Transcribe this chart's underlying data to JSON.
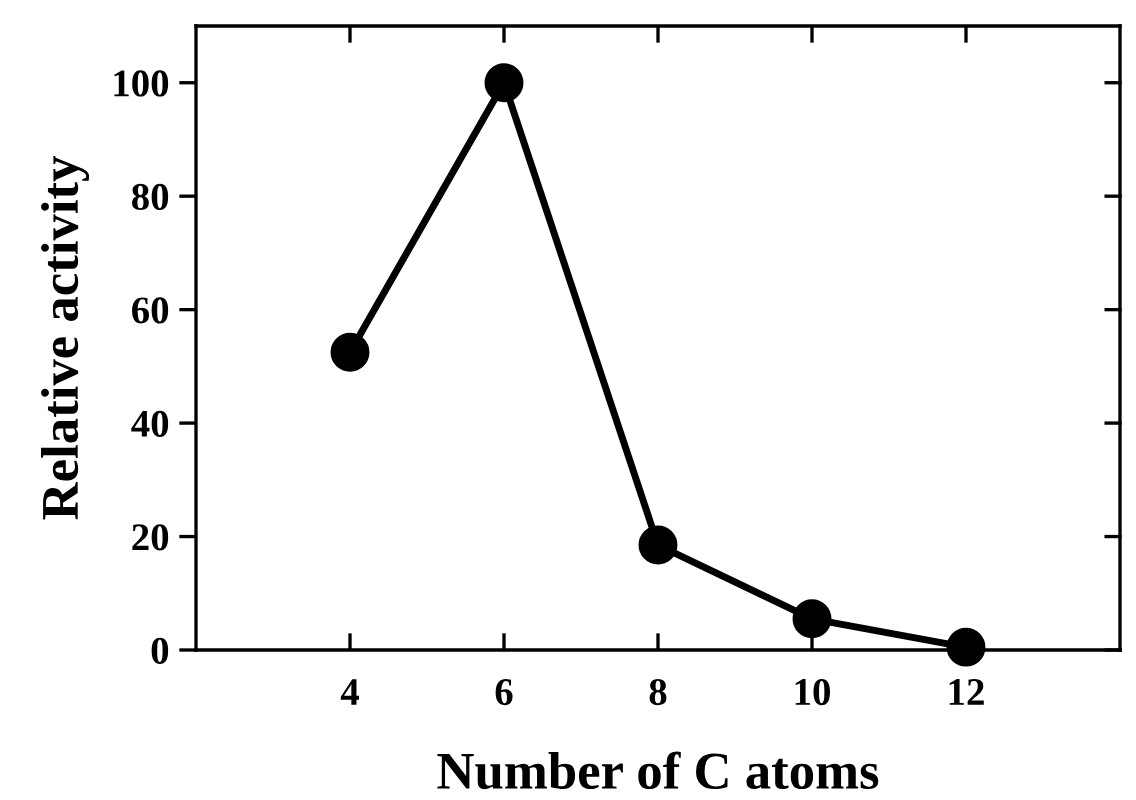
{
  "chart_data": {
    "type": "line",
    "xlabel": "Number of C atoms",
    "ylabel": "Relative activity",
    "x": [
      4,
      6,
      8,
      10,
      12
    ],
    "series": [
      {
        "color": "#000000",
        "values": [
          52.5,
          100,
          18.5,
          5.5,
          0.5
        ]
      }
    ],
    "xlim": [
      2,
      14
    ],
    "ylim": [
      0,
      110
    ],
    "xticks": [
      4,
      6,
      8,
      10,
      12
    ],
    "yticks": [
      0,
      20,
      40,
      60,
      80,
      100
    ],
    "marker": "circle",
    "line_style": "solid",
    "grid": false,
    "legend": false
  }
}
